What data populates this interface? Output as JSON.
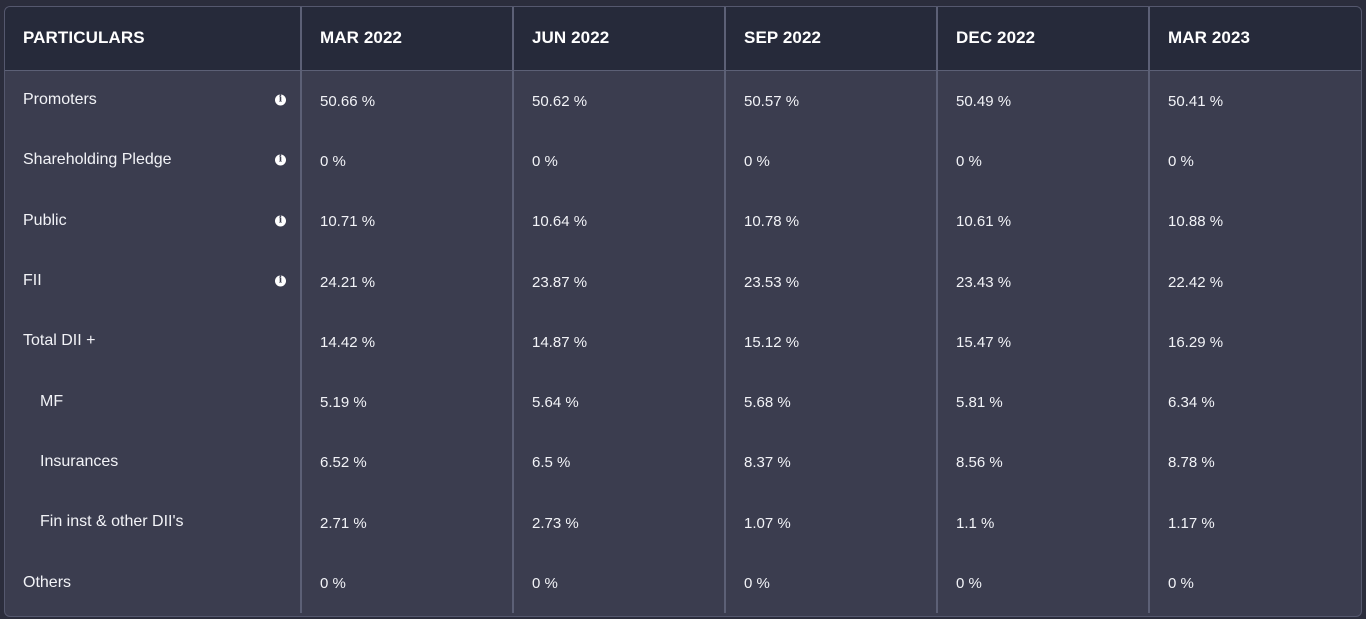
{
  "header": {
    "particulars": "PARTICULARS",
    "periods": [
      "MAR 2022",
      "JUN 2022",
      "SEP 2022",
      "DEC 2022",
      "MAR 2023"
    ]
  },
  "rows": [
    {
      "label": "Promoters",
      "info": true,
      "values": [
        "50.66 %",
        "50.62 %",
        "50.57 %",
        "50.49 %",
        "50.41 %"
      ]
    },
    {
      "label": "Shareholding Pledge",
      "info": true,
      "values": [
        "0 %",
        "0 %",
        "0 %",
        "0 %",
        "0 %"
      ]
    },
    {
      "label": "Public",
      "info": true,
      "values": [
        "10.71 %",
        "10.64 %",
        "10.78 %",
        "10.61 %",
        "10.88 %"
      ]
    },
    {
      "label": "FII",
      "info": true,
      "values": [
        "24.21 %",
        "23.87 %",
        "23.53 %",
        "23.43 %",
        "22.42 %"
      ]
    },
    {
      "label": "Total DII +",
      "info": false,
      "values": [
        "14.42 %",
        "14.87 %",
        "15.12 %",
        "15.47 %",
        "16.29 %"
      ]
    },
    {
      "label": "MF",
      "sub": true,
      "info": false,
      "values": [
        "5.19 %",
        "5.64 %",
        "5.68 %",
        "5.81 %",
        "6.34 %"
      ]
    },
    {
      "label": "Insurances",
      "sub": true,
      "info": false,
      "values": [
        "6.52 %",
        "6.5 %",
        "8.37 %",
        "8.56 %",
        "8.78 %"
      ]
    },
    {
      "label": "Fin inst & other DII's",
      "sub": true,
      "info": false,
      "values": [
        "2.71 %",
        "2.73 %",
        "1.07 %",
        "1.1 %",
        "1.17 %"
      ]
    },
    {
      "label": "Others",
      "info": false,
      "values": [
        "0 %",
        "0 %",
        "0 %",
        "0 %",
        "0 %"
      ]
    }
  ],
  "icons": {
    "info": "info-icon",
    "info_glyph": "i"
  },
  "colors": {
    "background": "#3b3d4f",
    "header_bg": "#262a3a",
    "divider": "#5c6076",
    "text": "#ffffff"
  }
}
